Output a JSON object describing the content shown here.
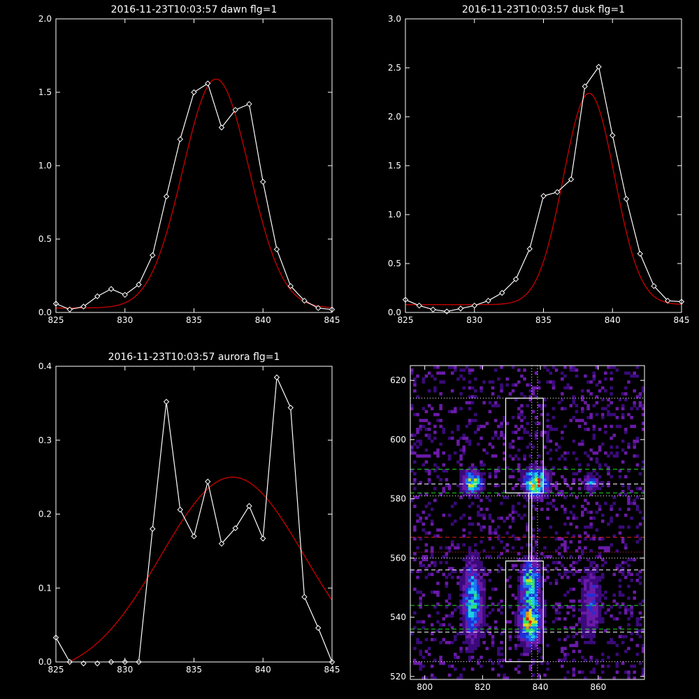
{
  "chart_data": [
    {
      "type": "line",
      "title": "2016-11-23T10:03:57 dawn flg=1",
      "xlim": [
        825,
        845
      ],
      "ylim": [
        0,
        2.0
      ],
      "xticks": [
        825,
        830,
        835,
        840,
        845
      ],
      "xtick_labels": [
        "825",
        "830",
        "835",
        "840",
        "845"
      ],
      "yticks": [
        0,
        0.5,
        1.0,
        1.5,
        2.0
      ],
      "ytick_labels": [
        "0.0",
        "0.5",
        "1.0",
        "1.5",
        "2.0"
      ],
      "series": [
        {
          "kind": "data",
          "color": "#ffffff",
          "marker": "diamond",
          "x": [
            825,
            826,
            827,
            828,
            829,
            830,
            831,
            832,
            833,
            834,
            835,
            836,
            837,
            838,
            839,
            840,
            841,
            842,
            843,
            844,
            845
          ],
          "y": [
            0.06,
            0.02,
            0.04,
            0.11,
            0.16,
            0.12,
            0.19,
            0.39,
            0.79,
            1.18,
            1.5,
            1.56,
            1.26,
            1.38,
            1.42,
            0.89,
            0.43,
            0.18,
            0.08,
            0.03,
            0.02
          ]
        },
        {
          "kind": "fit",
          "color": "#cc0000",
          "model": "gaussian",
          "params": {
            "amplitude": 1.56,
            "center": 836.6,
            "sigma": 2.4,
            "offset": 0.03
          }
        }
      ]
    },
    {
      "type": "line",
      "title": "2016-11-23T10:03:57 dusk flg=1",
      "xlim": [
        825,
        845
      ],
      "ylim": [
        0,
        3.0
      ],
      "xticks": [
        825,
        830,
        835,
        840,
        845
      ],
      "xtick_labels": [
        "825",
        "830",
        "835",
        "840",
        "845"
      ],
      "yticks": [
        0,
        0.5,
        1.0,
        1.5,
        2.0,
        2.5,
        3.0
      ],
      "ytick_labels": [
        "0.0",
        "0.5",
        "1.0",
        "1.5",
        "2.0",
        "2.5",
        "3.0"
      ],
      "series": [
        {
          "kind": "data",
          "color": "#ffffff",
          "marker": "diamond",
          "x": [
            825,
            826,
            827,
            828,
            829,
            830,
            831,
            832,
            833,
            834,
            835,
            836,
            837,
            838,
            839,
            840,
            841,
            842,
            843,
            844,
            845
          ],
          "y": [
            0.13,
            0.07,
            0.03,
            0.01,
            0.04,
            0.07,
            0.12,
            0.2,
            0.34,
            0.65,
            1.19,
            1.23,
            1.36,
            2.31,
            2.51,
            1.81,
            1.16,
            0.6,
            0.27,
            0.12,
            0.11
          ]
        },
        {
          "kind": "fit",
          "color": "#cc0000",
          "model": "gaussian",
          "params": {
            "amplitude": 2.16,
            "center": 838.3,
            "sigma": 1.85,
            "offset": 0.08
          }
        }
      ]
    },
    {
      "type": "line",
      "title": "2016-11-23T10:03:57 aurora flg=1",
      "xlim": [
        825,
        845
      ],
      "ylim": [
        0,
        0.4
      ],
      "xticks": [
        825,
        830,
        835,
        840,
        845
      ],
      "xtick_labels": [
        "825",
        "830",
        "835",
        "840",
        "845"
      ],
      "yticks": [
        0,
        0.1,
        0.2,
        0.3,
        0.4
      ],
      "ytick_labels": [
        "0.0",
        "0.1",
        "0.2",
        "0.3",
        "0.4"
      ],
      "series": [
        {
          "kind": "data",
          "color": "#ffffff",
          "marker": "diamond",
          "x": [
            825,
            826,
            827,
            828,
            829,
            830,
            831,
            832,
            833,
            834,
            835,
            836,
            837,
            838,
            839,
            840,
            841,
            842,
            843,
            844,
            845
          ],
          "y": [
            0.033,
            0.0,
            -0.002,
            -0.002,
            0.0,
            0.0,
            0.0,
            0.18,
            0.352,
            0.206,
            0.17,
            0.244,
            0.16,
            0.181,
            0.211,
            0.167,
            0.385,
            0.344,
            0.088,
            0.046,
            0.0
          ]
        },
        {
          "kind": "fit",
          "color": "#cc0000",
          "model": "gaussian",
          "params": {
            "amplitude": 0.27,
            "center": 837.8,
            "sigma": 5.2,
            "offset": -0.02
          }
        }
      ]
    },
    {
      "type": "heatmap",
      "xlim": [
        795,
        876
      ],
      "ylim": [
        519,
        625
      ],
      "xticks": [
        800,
        820,
        840,
        860
      ],
      "xtick_labels": [
        "800",
        "820",
        "840",
        "860"
      ],
      "yticks": [
        520,
        540,
        560,
        580,
        600,
        620
      ],
      "ytick_labels": [
        "520",
        "540",
        "560",
        "580",
        "600",
        "620"
      ],
      "colormap": [
        "#000000",
        "#3a0a7a",
        "#6a1aa8",
        "#2030d8",
        "#1a78f0",
        "#1ad0e0",
        "#30e070",
        "#c8e020",
        "#f09010",
        "#e02010"
      ],
      "hotspots": [
        {
          "x": 816,
          "y": 585,
          "sx": 2.2,
          "sy": 2.5,
          "peak": 0.8
        },
        {
          "x": 838,
          "y": 585,
          "sx": 2.6,
          "sy": 3.0,
          "peak": 1.0
        },
        {
          "x": 857,
          "y": 585,
          "sx": 1.5,
          "sy": 1.8,
          "peak": 0.45
        },
        {
          "x": 836,
          "y": 552,
          "sx": 2.2,
          "sy": 5.0,
          "peak": 0.65
        },
        {
          "x": 836,
          "y": 538,
          "sx": 2.5,
          "sy": 5.0,
          "peak": 0.85
        },
        {
          "x": 816,
          "y": 545,
          "sx": 2.2,
          "sy": 9.0,
          "peak": 0.6
        },
        {
          "x": 857,
          "y": 545,
          "sx": 2.2,
          "sy": 8.0,
          "peak": 0.35
        }
      ],
      "noise_density": 0.18,
      "overlays": {
        "boxes": [
          {
            "x0": 828,
            "x1": 841,
            "y0": 582,
            "y1": 614
          },
          {
            "x0": 828,
            "x1": 841,
            "y0": 525,
            "y1": 559
          },
          {
            "x0": 836,
            "x1": 837,
            "y0": 559,
            "y1": 582
          }
        ],
        "hlines": [
          {
            "y": 614,
            "color": "#ffffff",
            "style": "dotted"
          },
          {
            "y": 590,
            "color": "#20e020",
            "style": "dashed"
          },
          {
            "y": 585,
            "color": "#ffffff",
            "style": "dashed"
          },
          {
            "y": 582,
            "color": "#20e020",
            "style": "dashed"
          },
          {
            "y": 581,
            "color": "#ffffff",
            "style": "dotted"
          },
          {
            "y": 567,
            "color": "#e02020",
            "style": "dashed"
          },
          {
            "y": 562,
            "color": "#e02020",
            "style": "dotted"
          },
          {
            "y": 560,
            "color": "#ffffff",
            "style": "dotted"
          },
          {
            "y": 556,
            "color": "#ffffff",
            "style": "dashed"
          },
          {
            "y": 544,
            "color": "#20e020",
            "style": "dashed"
          },
          {
            "y": 536,
            "color": "#20e020",
            "style": "dashed"
          },
          {
            "y": 535,
            "color": "#ffffff",
            "style": "dashed"
          },
          {
            "y": 525,
            "color": "#ffffff",
            "style": "dotted"
          }
        ],
        "vlines": [
          {
            "x": 837,
            "color": "#ffffff",
            "style": "dotted"
          },
          {
            "x": 839,
            "color": "#ffffff",
            "style": "dotted"
          }
        ]
      }
    }
  ]
}
